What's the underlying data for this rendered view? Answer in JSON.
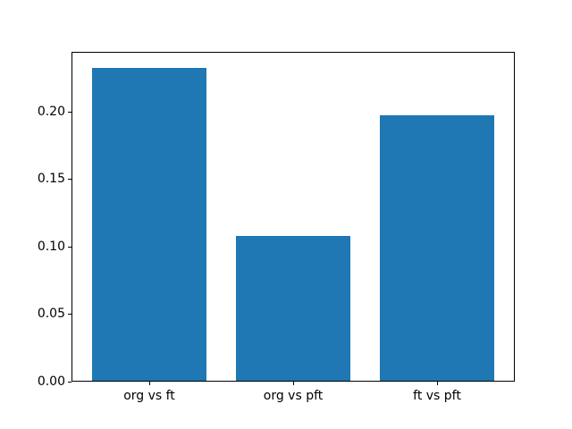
{
  "figure": {
    "background": "#ffffff",
    "spine_color": "#000000",
    "text_color": "#000000"
  },
  "chart_data": {
    "type": "bar",
    "title": "",
    "xlabel": "",
    "ylabel": "",
    "categories": [
      "org vs ft",
      "org vs pft",
      "ft vs pft"
    ],
    "values": [
      0.232,
      0.108,
      0.197
    ],
    "bar_color": "#1f77b4",
    "bar_width_data_units": 0.8,
    "xlim": [
      -0.54,
      2.54
    ],
    "ylim": [
      0,
      0.244
    ],
    "yticks": [
      0.0,
      0.05,
      0.1,
      0.15,
      0.2
    ],
    "ytick_labels": [
      "0.00",
      "0.05",
      "0.10",
      "0.15",
      "0.20"
    ],
    "grid": false,
    "legend": null
  }
}
